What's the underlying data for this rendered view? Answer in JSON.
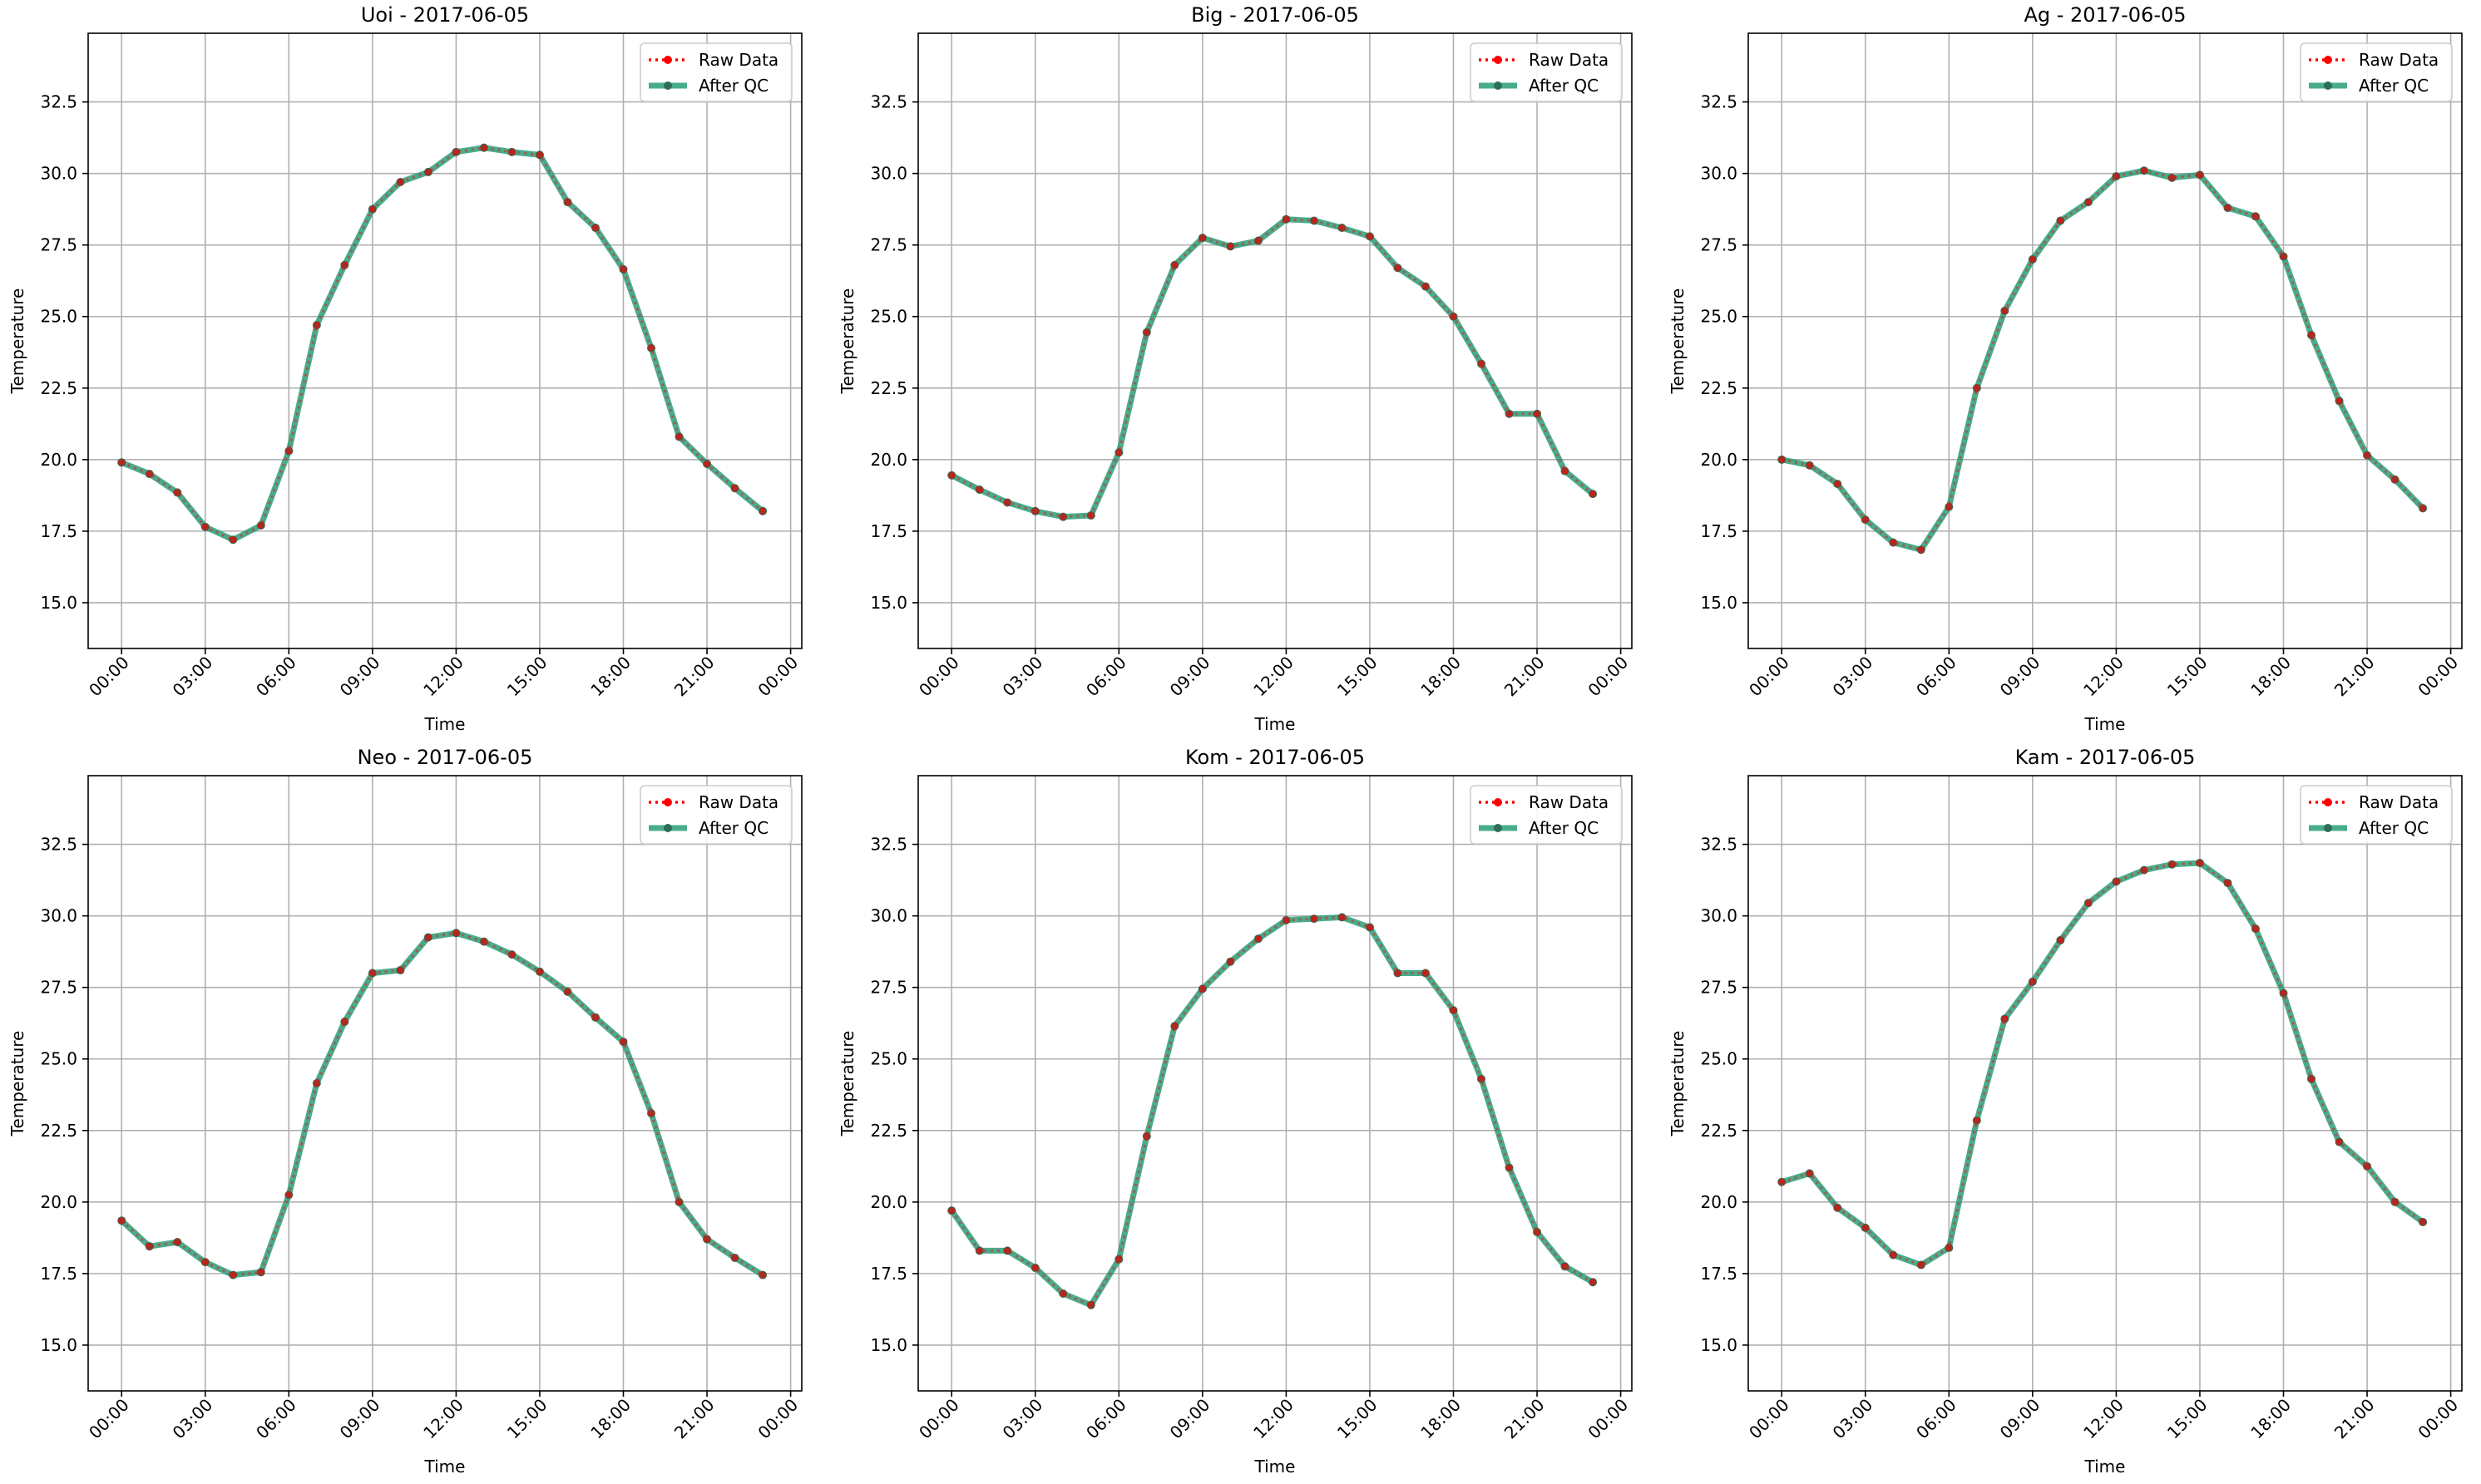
{
  "colors": {
    "raw": "#ff0000",
    "qc": "#2a9d78",
    "marker": "#2e6e56",
    "grid": "#b0b0b0",
    "axis": "#000000",
    "text": "#000000"
  },
  "chart_data": [
    {
      "type": "line",
      "title": "Uoi - 2017-06-05",
      "xlabel": "Time",
      "ylabel": "Temperature",
      "xlim": [
        -1.2,
        24.4
      ],
      "ylim": [
        13.4,
        34.9
      ],
      "xticks": [
        0,
        3,
        6,
        9,
        12,
        15,
        18,
        21,
        24
      ],
      "xtick_labels": [
        "00:00",
        "03:00",
        "06:00",
        "09:00",
        "12:00",
        "15:00",
        "18:00",
        "21:00",
        "00:00"
      ],
      "yticks": [
        15.0,
        17.5,
        20.0,
        22.5,
        25.0,
        27.5,
        30.0,
        32.5
      ],
      "ytick_labels": [
        "15.0",
        "17.5",
        "20.0",
        "22.5",
        "25.0",
        "27.5",
        "30.0",
        "32.5"
      ],
      "grid": true,
      "legend": "top-right",
      "x": [
        0,
        1,
        2,
        3,
        4,
        5,
        6,
        7,
        8,
        9,
        10,
        11,
        12,
        13,
        14,
        15,
        16,
        17,
        18,
        19,
        20,
        21,
        22,
        23
      ],
      "series": [
        {
          "name": "Raw Data",
          "values": [
            19.9,
            19.5,
            18.85,
            17.65,
            17.2,
            17.7,
            20.3,
            24.7,
            26.8,
            28.75,
            29.7,
            30.05,
            30.75,
            30.9,
            30.75,
            30.65,
            29.0,
            28.1,
            26.65,
            23.9,
            20.8,
            19.85,
            19.0,
            18.2
          ]
        },
        {
          "name": "After QC",
          "values": [
            19.9,
            19.5,
            18.85,
            17.65,
            17.2,
            17.7,
            20.3,
            24.7,
            26.8,
            28.75,
            29.7,
            30.05,
            30.75,
            30.9,
            30.75,
            30.65,
            29.0,
            28.1,
            26.65,
            23.9,
            20.8,
            19.85,
            19.0,
            18.2
          ]
        }
      ]
    },
    {
      "type": "line",
      "title": "Big - 2017-06-05",
      "xlabel": "Time",
      "ylabel": "Temperature",
      "xlim": [
        -1.2,
        24.4
      ],
      "ylim": [
        13.4,
        34.9
      ],
      "xticks": [
        0,
        3,
        6,
        9,
        12,
        15,
        18,
        21,
        24
      ],
      "xtick_labels": [
        "00:00",
        "03:00",
        "06:00",
        "09:00",
        "12:00",
        "15:00",
        "18:00",
        "21:00",
        "00:00"
      ],
      "yticks": [
        15.0,
        17.5,
        20.0,
        22.5,
        25.0,
        27.5,
        30.0,
        32.5
      ],
      "ytick_labels": [
        "15.0",
        "17.5",
        "20.0",
        "22.5",
        "25.0",
        "27.5",
        "30.0",
        "32.5"
      ],
      "grid": true,
      "legend": "top-right",
      "x": [
        0,
        1,
        2,
        3,
        4,
        5,
        6,
        7,
        8,
        9,
        10,
        11,
        12,
        13,
        14,
        15,
        16,
        17,
        18,
        19,
        20,
        21,
        22,
        23
      ],
      "series": [
        {
          "name": "Raw Data",
          "values": [
            19.45,
            18.95,
            18.5,
            18.2,
            18.0,
            18.05,
            20.25,
            24.45,
            26.8,
            27.75,
            27.45,
            27.65,
            28.4,
            28.35,
            28.1,
            27.8,
            26.7,
            26.05,
            25.0,
            23.35,
            21.6,
            21.6,
            19.6,
            18.8
          ]
        },
        {
          "name": "After QC",
          "values": [
            19.45,
            18.95,
            18.5,
            18.2,
            18.0,
            18.05,
            20.25,
            24.45,
            26.8,
            27.75,
            27.45,
            27.65,
            28.4,
            28.35,
            28.1,
            27.8,
            26.7,
            26.05,
            25.0,
            23.35,
            21.6,
            21.6,
            19.6,
            18.8
          ]
        }
      ]
    },
    {
      "type": "line",
      "title": "Ag - 2017-06-05",
      "xlabel": "Time",
      "ylabel": "Temperature",
      "xlim": [
        -1.2,
        24.4
      ],
      "ylim": [
        13.4,
        34.9
      ],
      "xticks": [
        0,
        3,
        6,
        9,
        12,
        15,
        18,
        21,
        24
      ],
      "xtick_labels": [
        "00:00",
        "03:00",
        "06:00",
        "09:00",
        "12:00",
        "15:00",
        "18:00",
        "21:00",
        "00:00"
      ],
      "yticks": [
        15.0,
        17.5,
        20.0,
        22.5,
        25.0,
        27.5,
        30.0,
        32.5
      ],
      "ytick_labels": [
        "15.0",
        "17.5",
        "20.0",
        "22.5",
        "25.0",
        "27.5",
        "30.0",
        "32.5"
      ],
      "grid": true,
      "legend": "top-right",
      "x": [
        0,
        1,
        2,
        3,
        4,
        5,
        6,
        7,
        8,
        9,
        10,
        11,
        12,
        13,
        14,
        15,
        16,
        17,
        18,
        19,
        20,
        21,
        22,
        23
      ],
      "series": [
        {
          "name": "Raw Data",
          "values": [
            20.0,
            19.8,
            19.15,
            17.9,
            17.1,
            16.85,
            18.35,
            22.5,
            25.2,
            27.0,
            28.35,
            29.0,
            29.9,
            30.1,
            29.85,
            29.95,
            28.8,
            28.5,
            27.1,
            24.35,
            22.05,
            20.15,
            19.3,
            18.3
          ]
        },
        {
          "name": "After QC",
          "values": [
            20.0,
            19.8,
            19.15,
            17.9,
            17.1,
            16.85,
            18.35,
            22.5,
            25.2,
            27.0,
            28.35,
            29.0,
            29.9,
            30.1,
            29.85,
            29.95,
            28.8,
            28.5,
            27.1,
            24.35,
            22.05,
            20.15,
            19.3,
            18.3
          ]
        }
      ]
    },
    {
      "type": "line",
      "title": "Neo - 2017-06-05",
      "xlabel": "Time",
      "ylabel": "Temperature",
      "xlim": [
        -1.2,
        24.4
      ],
      "ylim": [
        13.4,
        34.9
      ],
      "xticks": [
        0,
        3,
        6,
        9,
        12,
        15,
        18,
        21,
        24
      ],
      "xtick_labels": [
        "00:00",
        "03:00",
        "06:00",
        "09:00",
        "12:00",
        "15:00",
        "18:00",
        "21:00",
        "00:00"
      ],
      "yticks": [
        15.0,
        17.5,
        20.0,
        22.5,
        25.0,
        27.5,
        30.0,
        32.5
      ],
      "ytick_labels": [
        "15.0",
        "17.5",
        "20.0",
        "22.5",
        "25.0",
        "27.5",
        "30.0",
        "32.5"
      ],
      "grid": true,
      "legend": "top-right",
      "x": [
        0,
        1,
        2,
        3,
        4,
        5,
        6,
        7,
        8,
        9,
        10,
        11,
        12,
        13,
        14,
        15,
        16,
        17,
        18,
        19,
        20,
        21,
        22,
        23
      ],
      "series": [
        {
          "name": "Raw Data",
          "values": [
            19.35,
            18.45,
            18.6,
            17.9,
            17.45,
            17.55,
            20.25,
            24.15,
            26.3,
            28.0,
            28.1,
            29.25,
            29.4,
            29.1,
            28.65,
            28.05,
            27.35,
            26.45,
            25.6,
            23.1,
            20.0,
            18.7,
            18.05,
            17.45
          ]
        },
        {
          "name": "After QC",
          "values": [
            19.35,
            18.45,
            18.6,
            17.9,
            17.45,
            17.55,
            20.25,
            24.15,
            26.3,
            28.0,
            28.1,
            29.25,
            29.4,
            29.1,
            28.65,
            28.05,
            27.35,
            26.45,
            25.6,
            23.1,
            20.0,
            18.7,
            18.05,
            17.45
          ]
        }
      ]
    },
    {
      "type": "line",
      "title": "Kom - 2017-06-05",
      "xlabel": "Time",
      "ylabel": "Temperature",
      "xlim": [
        -1.2,
        24.4
      ],
      "ylim": [
        13.4,
        34.9
      ],
      "xticks": [
        0,
        3,
        6,
        9,
        12,
        15,
        18,
        21,
        24
      ],
      "xtick_labels": [
        "00:00",
        "03:00",
        "06:00",
        "09:00",
        "12:00",
        "15:00",
        "18:00",
        "21:00",
        "00:00"
      ],
      "yticks": [
        15.0,
        17.5,
        20.0,
        22.5,
        25.0,
        27.5,
        30.0,
        32.5
      ],
      "ytick_labels": [
        "15.0",
        "17.5",
        "20.0",
        "22.5",
        "25.0",
        "27.5",
        "30.0",
        "32.5"
      ],
      "grid": true,
      "legend": "top-right",
      "x": [
        0,
        1,
        2,
        3,
        4,
        5,
        6,
        7,
        8,
        9,
        10,
        11,
        12,
        13,
        14,
        15,
        16,
        17,
        18,
        19,
        20,
        21,
        22,
        23
      ],
      "series": [
        {
          "name": "Raw Data",
          "values": [
            19.7,
            18.3,
            18.3,
            17.7,
            16.8,
            16.4,
            18.0,
            22.3,
            26.15,
            27.45,
            28.4,
            29.2,
            29.85,
            29.9,
            29.95,
            29.6,
            28.0,
            28.0,
            26.7,
            24.3,
            21.2,
            18.95,
            17.75,
            17.2
          ]
        },
        {
          "name": "After QC",
          "values": [
            19.7,
            18.3,
            18.3,
            17.7,
            16.8,
            16.4,
            18.0,
            22.3,
            26.15,
            27.45,
            28.4,
            29.2,
            29.85,
            29.9,
            29.95,
            29.6,
            28.0,
            28.0,
            26.7,
            24.3,
            21.2,
            18.95,
            17.75,
            17.2
          ]
        }
      ]
    },
    {
      "type": "line",
      "title": "Kam - 2017-06-05",
      "xlabel": "Time",
      "ylabel": "Temperature",
      "xlim": [
        -1.2,
        24.4
      ],
      "ylim": [
        13.4,
        34.9
      ],
      "xticks": [
        0,
        3,
        6,
        9,
        12,
        15,
        18,
        21,
        24
      ],
      "xtick_labels": [
        "00:00",
        "03:00",
        "06:00",
        "09:00",
        "12:00",
        "15:00",
        "18:00",
        "21:00",
        "00:00"
      ],
      "yticks": [
        15.0,
        17.5,
        20.0,
        22.5,
        25.0,
        27.5,
        30.0,
        32.5
      ],
      "ytick_labels": [
        "15.0",
        "17.5",
        "20.0",
        "22.5",
        "25.0",
        "27.5",
        "30.0",
        "32.5"
      ],
      "grid": true,
      "legend": "top-right",
      "x": [
        0,
        1,
        2,
        3,
        4,
        5,
        6,
        7,
        8,
        9,
        10,
        11,
        12,
        13,
        14,
        15,
        16,
        17,
        18,
        19,
        20,
        21,
        22,
        23
      ],
      "series": [
        {
          "name": "Raw Data",
          "values": [
            20.7,
            21.0,
            19.8,
            19.1,
            18.15,
            17.8,
            18.4,
            22.85,
            26.4,
            27.7,
            29.15,
            30.45,
            31.2,
            31.6,
            31.8,
            31.85,
            31.15,
            29.55,
            27.3,
            24.3,
            22.1,
            21.25,
            20.0,
            19.3
          ]
        },
        {
          "name": "After QC",
          "values": [
            20.7,
            21.0,
            19.8,
            19.1,
            18.15,
            17.8,
            18.4,
            22.85,
            26.4,
            27.7,
            29.15,
            30.45,
            31.2,
            31.6,
            31.8,
            31.85,
            31.15,
            29.55,
            27.3,
            24.3,
            22.1,
            21.25,
            20.0,
            19.3
          ]
        }
      ]
    }
  ]
}
